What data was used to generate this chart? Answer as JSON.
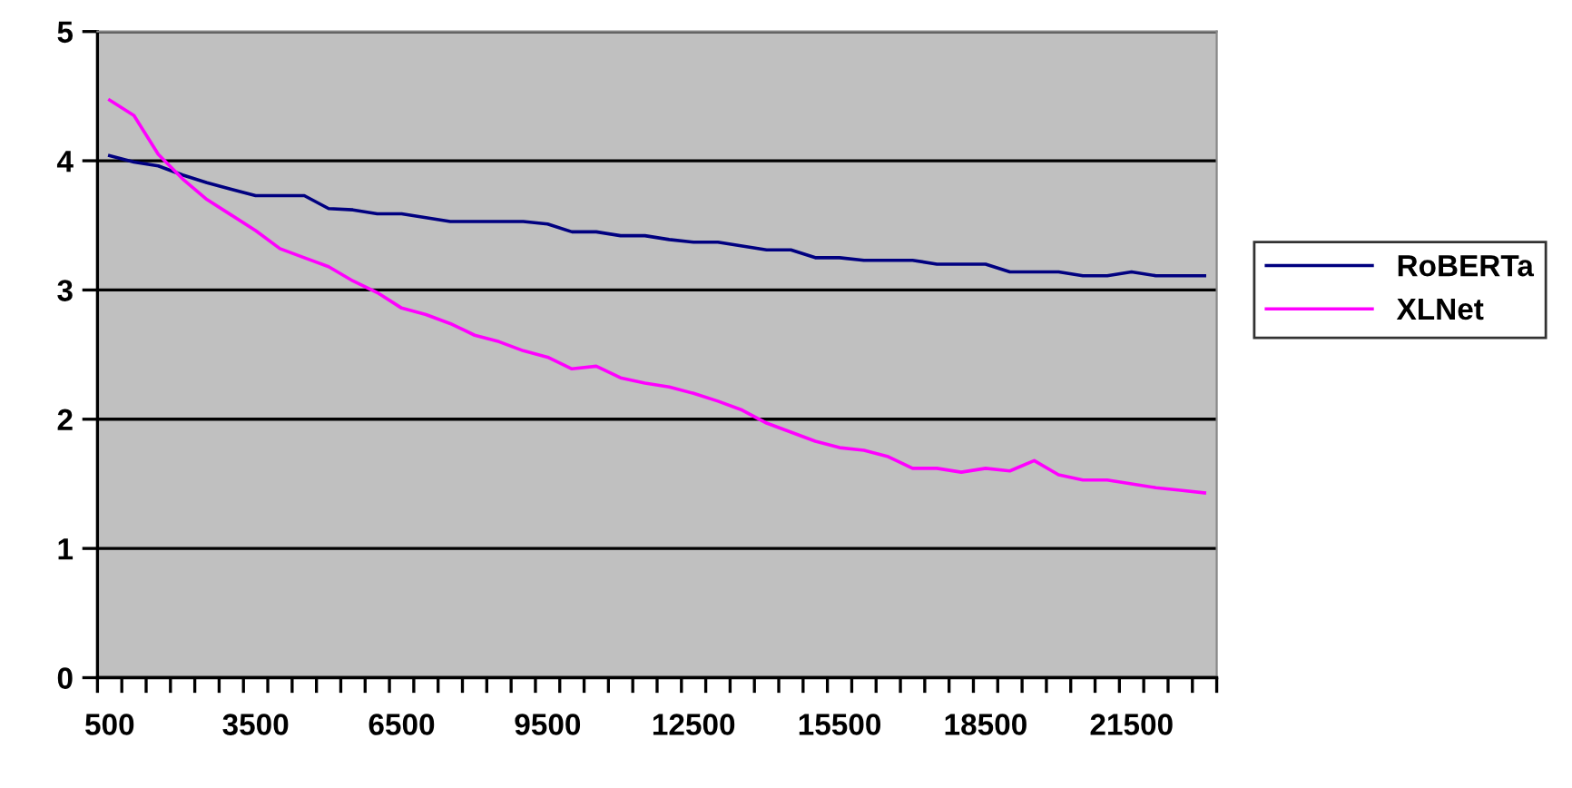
{
  "chart_data": {
    "type": "line",
    "categories": [
      "500",
      null,
      null,
      null,
      null,
      null,
      "3500",
      null,
      null,
      null,
      null,
      null,
      "6500",
      null,
      null,
      null,
      null,
      null,
      "9500",
      null,
      null,
      null,
      null,
      null,
      "12500",
      null,
      null,
      null,
      null,
      null,
      "15500",
      null,
      null,
      null,
      null,
      null,
      "18500",
      null,
      null,
      null,
      null,
      null,
      "21500",
      null,
      null,
      null
    ],
    "series": [
      {
        "name": "RoBERTa",
        "color": "#000080",
        "values": [
          4.04,
          3.99,
          3.96,
          3.89,
          3.83,
          3.78,
          3.73,
          3.73,
          3.73,
          3.63,
          3.62,
          3.59,
          3.59,
          3.56,
          3.53,
          3.53,
          3.53,
          3.53,
          3.51,
          3.45,
          3.45,
          3.42,
          3.42,
          3.39,
          3.37,
          3.37,
          3.34,
          3.31,
          3.31,
          3.25,
          3.25,
          3.23,
          3.23,
          3.23,
          3.2,
          3.2,
          3.2,
          3.14,
          3.14,
          3.14,
          3.11,
          3.11,
          3.14,
          3.11,
          3.11,
          3.11
        ]
      },
      {
        "name": "XLNet",
        "color": "#ff00ff",
        "values": [
          4.47,
          4.35,
          4.05,
          3.86,
          3.7,
          3.58,
          3.46,
          3.32,
          3.25,
          3.18,
          3.07,
          2.98,
          2.86,
          2.81,
          2.74,
          2.65,
          2.6,
          2.53,
          2.48,
          2.39,
          2.41,
          2.32,
          2.28,
          2.25,
          2.2,
          2.14,
          2.07,
          1.97,
          1.9,
          1.83,
          1.78,
          1.76,
          1.71,
          1.62,
          1.62,
          1.59,
          1.62,
          1.6,
          1.68,
          1.57,
          1.53,
          1.53,
          1.5,
          1.47,
          1.45,
          1.43
        ]
      }
    ],
    "ylim": [
      0,
      5
    ],
    "yticks": [
      0,
      1,
      2,
      3,
      4,
      5
    ],
    "grid": "y",
    "legend": "right"
  }
}
